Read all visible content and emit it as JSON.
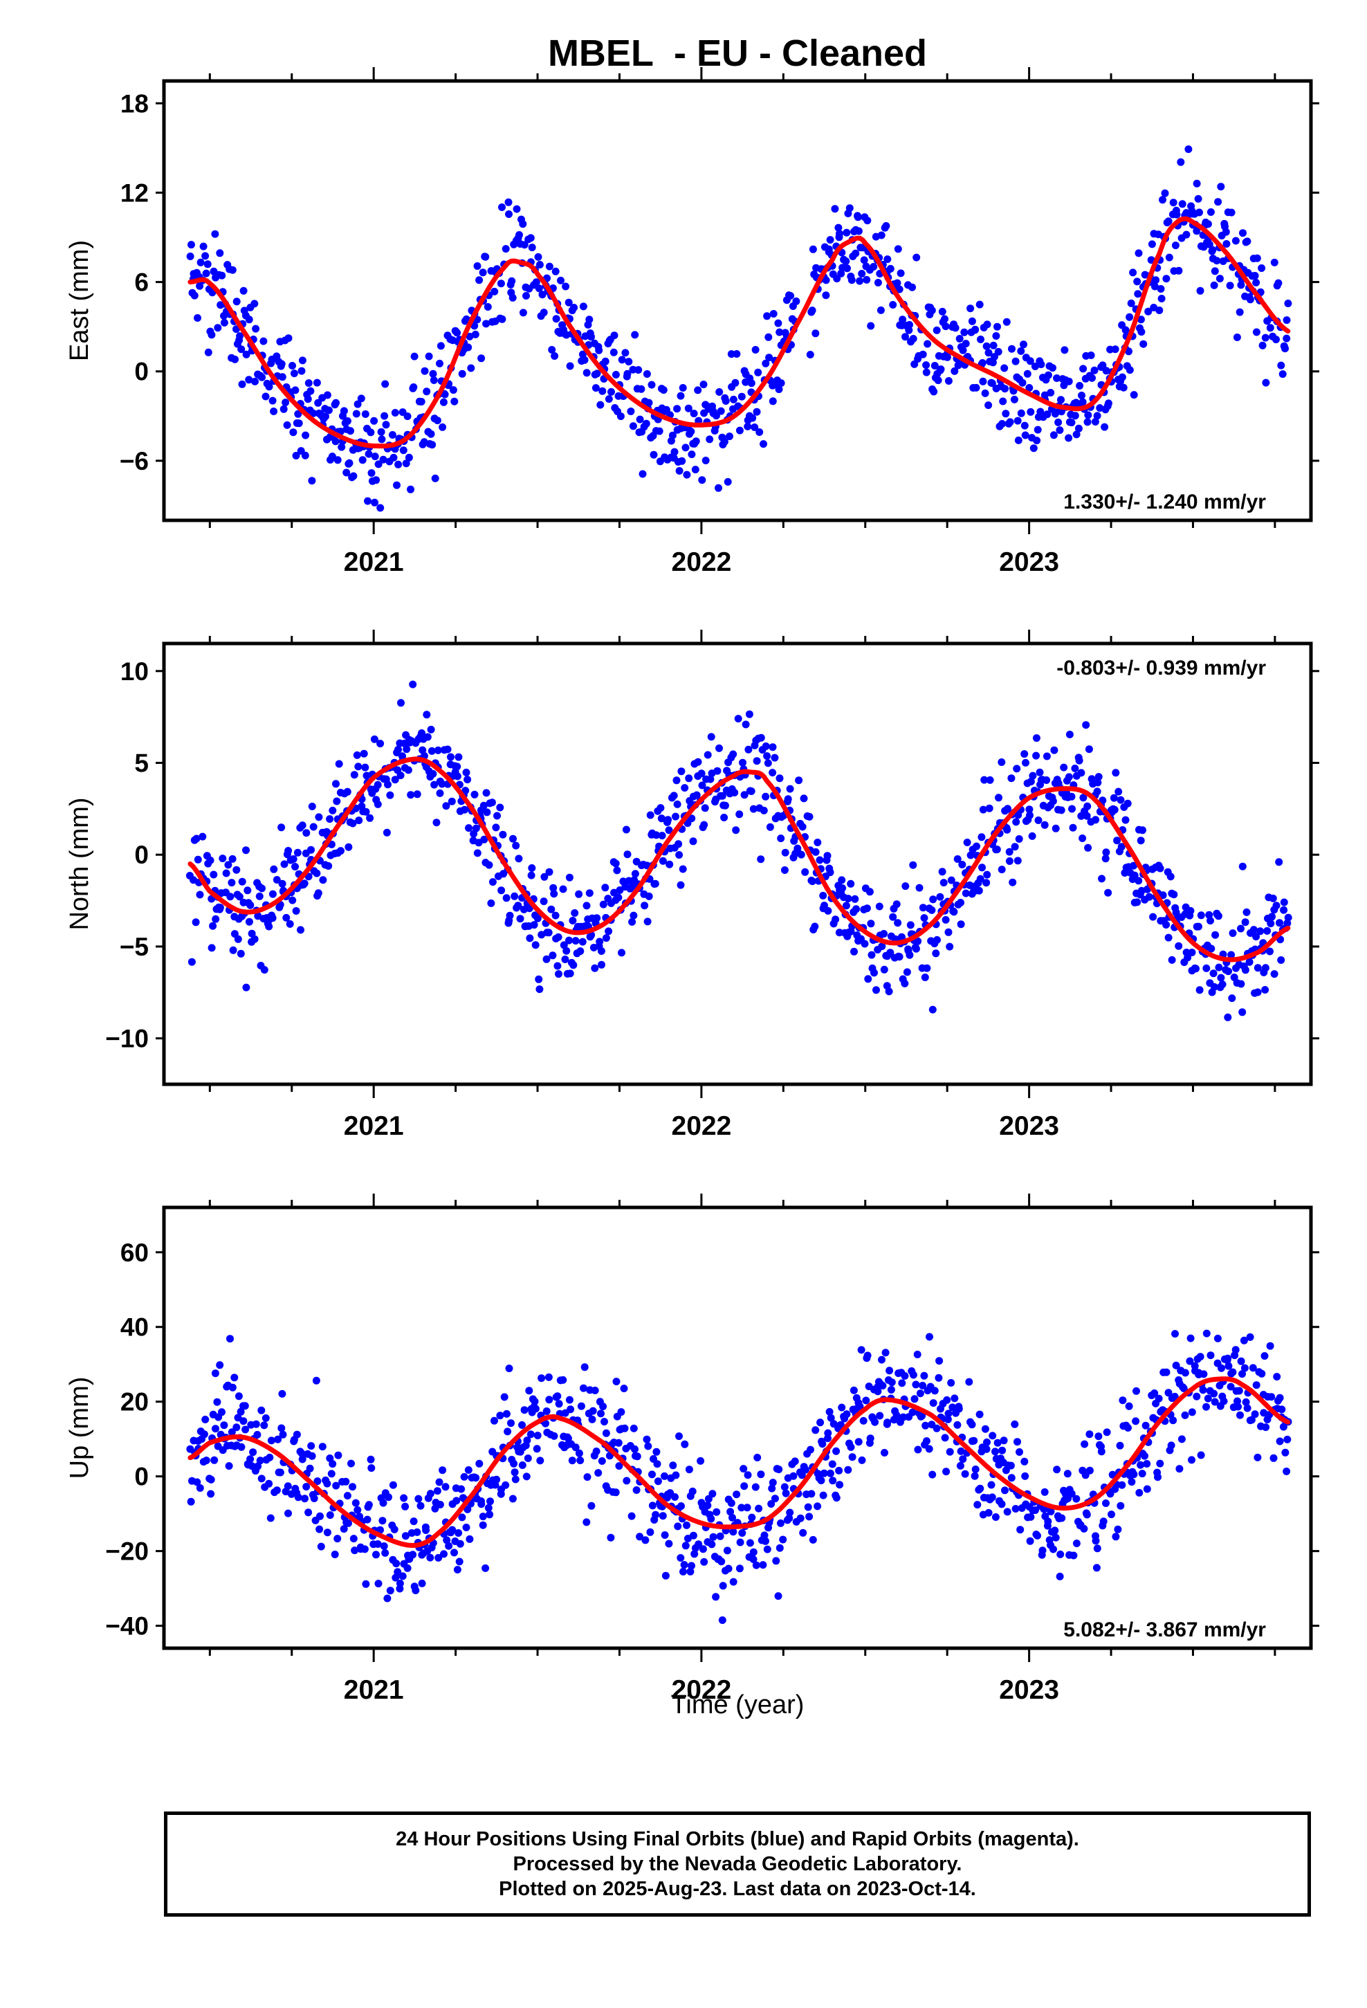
{
  "title": "MBEL  - EU - Cleaned",
  "colors": {
    "points": "#0000ff",
    "fit": "#ff0000",
    "axes": "#000000"
  },
  "chart_data": [
    {
      "type": "scatter",
      "ylabel": "East (mm)",
      "xlabel": "",
      "xlim": [
        2020.36,
        2023.86
      ],
      "ylim": [
        -10.0,
        19.5
      ],
      "yticks": [
        -6,
        0,
        6,
        12,
        18
      ],
      "xticks": [
        2021,
        2022,
        2023
      ],
      "grid": false,
      "annotation": "1.330+/- 1.240 mm/yr",
      "annotation_position": "bottom-right",
      "series": [
        {
          "kind": "scatter-points",
          "x_range": [
            2020.44,
            2023.79
          ],
          "gap_start": 2022.29,
          "gap_end": 2022.33
        },
        {
          "kind": "fit-curve",
          "x": [
            2020.44,
            2020.5,
            2020.6,
            2020.7,
            2020.8,
            2020.9,
            2021.0,
            2021.1,
            2021.2,
            2021.3,
            2021.4,
            2021.45,
            2021.5,
            2021.6,
            2021.7,
            2021.8,
            2021.9,
            2022.0,
            2022.1,
            2022.2,
            2022.3,
            2022.4,
            2022.45,
            2022.5,
            2022.6,
            2022.7,
            2022.8,
            2022.9,
            2023.0,
            2023.1,
            2023.2,
            2023.3,
            2023.4,
            2023.45,
            2023.5,
            2023.6,
            2023.7,
            2023.79
          ],
          "y": [
            6.0,
            5.9,
            2.8,
            -0.6,
            -3.0,
            -4.4,
            -5.0,
            -4.5,
            -1.5,
            3.5,
            7.0,
            7.3,
            6.5,
            3.0,
            0.0,
            -2.0,
            -3.2,
            -3.6,
            -3.0,
            -0.5,
            3.5,
            7.5,
            8.7,
            8.6,
            5.0,
            2.3,
            0.8,
            -0.3,
            -1.5,
            -2.4,
            -2.0,
            2.0,
            8.0,
            10.0,
            10.0,
            8.0,
            5.0,
            2.7
          ]
        }
      ]
    },
    {
      "type": "scatter",
      "ylabel": "North (mm)",
      "xlabel": "",
      "xlim": [
        2020.36,
        2023.86
      ],
      "ylim": [
        -12.5,
        11.5
      ],
      "yticks": [
        -10,
        -5,
        0,
        5,
        10
      ],
      "xticks": [
        2021,
        2022,
        2023
      ],
      "grid": false,
      "annotation": "-0.803+/- 0.939 mm/yr",
      "annotation_position": "top-right",
      "series": [
        {
          "kind": "scatter-points",
          "x_range": [
            2020.44,
            2023.79
          ]
        },
        {
          "kind": "fit-curve",
          "x": [
            2020.44,
            2020.5,
            2020.6,
            2020.7,
            2020.8,
            2020.9,
            2021.0,
            2021.12,
            2021.2,
            2021.3,
            2021.4,
            2021.5,
            2021.6,
            2021.7,
            2021.8,
            2021.9,
            2022.0,
            2022.1,
            2022.15,
            2022.2,
            2022.3,
            2022.4,
            2022.5,
            2022.6,
            2022.7,
            2022.8,
            2022.9,
            2023.0,
            2023.12,
            2023.2,
            2023.3,
            2023.4,
            2023.5,
            2023.6,
            2023.7,
            2023.79
          ],
          "y": [
            -0.5,
            -2.0,
            -3.1,
            -2.6,
            -0.8,
            1.8,
            4.2,
            5.2,
            4.6,
            2.5,
            -0.5,
            -3.0,
            -4.2,
            -3.8,
            -2.0,
            0.8,
            3.0,
            4.3,
            4.5,
            4.0,
            1.0,
            -2.3,
            -4.2,
            -4.8,
            -3.8,
            -1.5,
            1.2,
            3.1,
            3.6,
            3.0,
            0.5,
            -2.5,
            -4.8,
            -5.7,
            -5.3,
            -4.0
          ]
        }
      ]
    },
    {
      "type": "scatter",
      "ylabel": "Up (mm)",
      "xlabel": "Time (year)",
      "xlim": [
        2020.36,
        2023.86
      ],
      "ylim": [
        -46,
        72
      ],
      "yticks": [
        -40,
        -20,
        0,
        20,
        40,
        60
      ],
      "xticks": [
        2021,
        2022,
        2023
      ],
      "grid": false,
      "annotation": "5.082+/- 3.867 mm/yr",
      "annotation_position": "bottom-right",
      "series": [
        {
          "kind": "scatter-points",
          "x_range": [
            2020.44,
            2023.79
          ]
        },
        {
          "kind": "fit-curve",
          "x": [
            2020.44,
            2020.5,
            2020.6,
            2020.7,
            2020.8,
            2020.9,
            2021.0,
            2021.12,
            2021.2,
            2021.3,
            2021.4,
            2021.5,
            2021.57,
            2021.7,
            2021.8,
            2021.9,
            2022.0,
            2022.1,
            2022.2,
            2022.3,
            2022.4,
            2022.5,
            2022.57,
            2022.7,
            2022.8,
            2022.9,
            2023.0,
            2023.1,
            2023.2,
            2023.3,
            2023.4,
            2023.5,
            2023.57,
            2023.65,
            2023.79
          ],
          "y": [
            5.0,
            9.0,
            10.5,
            6.5,
            -1.0,
            -9.0,
            -15.0,
            -18.5,
            -15.0,
            -5.0,
            7.0,
            14.5,
            15.5,
            9.0,
            0.5,
            -8.0,
            -12.5,
            -13.5,
            -11.5,
            -3.0,
            9.0,
            18.0,
            20.5,
            16.5,
            8.5,
            0.5,
            -5.5,
            -8.5,
            -6.0,
            3.0,
            15.0,
            23.5,
            26.0,
            24.5,
            14.5
          ]
        }
      ]
    }
  ],
  "footer": {
    "line1": "24 Hour Positions Using Final Orbits (blue) and Rapid Orbits (magenta).",
    "line2": "Processed by the Nevada Geodetic Laboratory.",
    "line3": "Plotted on 2025-Aug-23. Last data on 2023-Oct-14."
  }
}
